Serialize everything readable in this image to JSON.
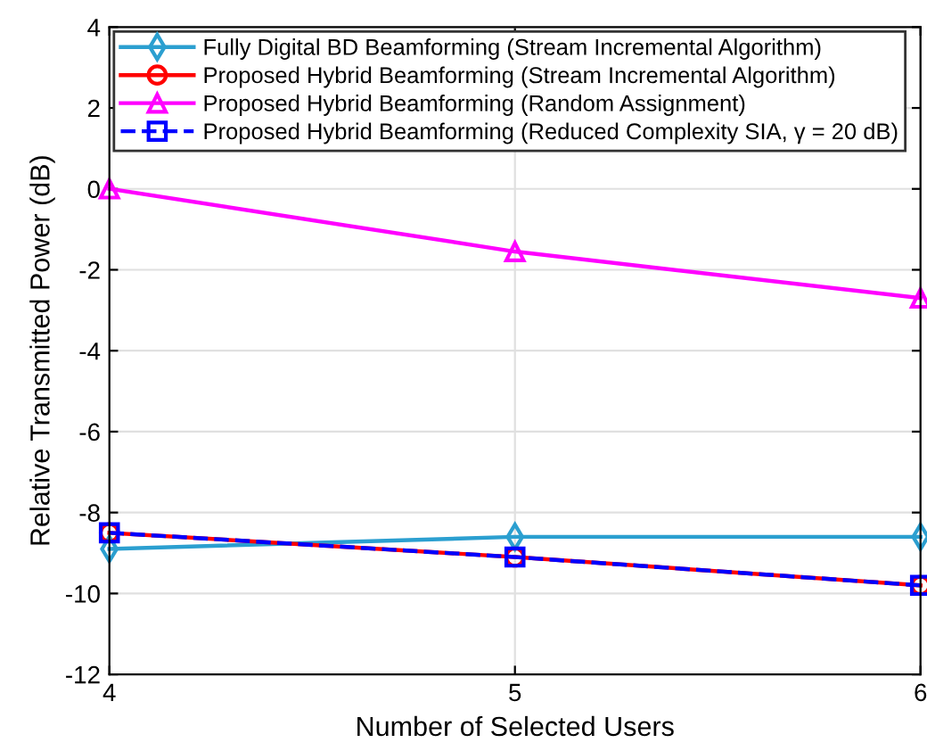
{
  "chart_data": {
    "type": "line",
    "xlabel": "Number of Selected Users",
    "ylabel": "Relative Transmitted Power (dB)",
    "x": [
      4,
      5,
      6
    ],
    "xlim": [
      4,
      6
    ],
    "xticks": [
      4,
      5,
      6
    ],
    "ylim": [
      -12,
      4
    ],
    "yticks": [
      -12,
      -10,
      -8,
      -6,
      -4,
      -2,
      0,
      2,
      4
    ],
    "grid": true,
    "legend": "top left",
    "series": [
      {
        "name": "Fully Digital BD Beamforming (Stream Incremental Algorithm)",
        "color": "#2b9fd0",
        "values": [
          -8.9,
          -8.6,
          -8.6
        ],
        "marker": "diamond",
        "line_style": "solid"
      },
      {
        "name": "Proposed Hybrid Beamforming (Stream Incremental Algorithm)",
        "color": "#ff0000",
        "values": [
          -8.5,
          -9.1,
          -9.8
        ],
        "marker": "circle",
        "line_style": "solid"
      },
      {
        "name": "Proposed Hybrid Beamforming (Random Assignment)",
        "color": "#ff00ff",
        "values": [
          0,
          -1.55,
          -2.7
        ],
        "marker": "triangle",
        "line_style": "solid"
      },
      {
        "name": "Proposed Hybrid Beamforming (Reduced Complexity SIA, γ = 20 dB)",
        "color": "#0000ff",
        "values": [
          -8.5,
          -9.1,
          -9.8
        ],
        "marker": "square",
        "line_style": "dashed"
      }
    ]
  }
}
